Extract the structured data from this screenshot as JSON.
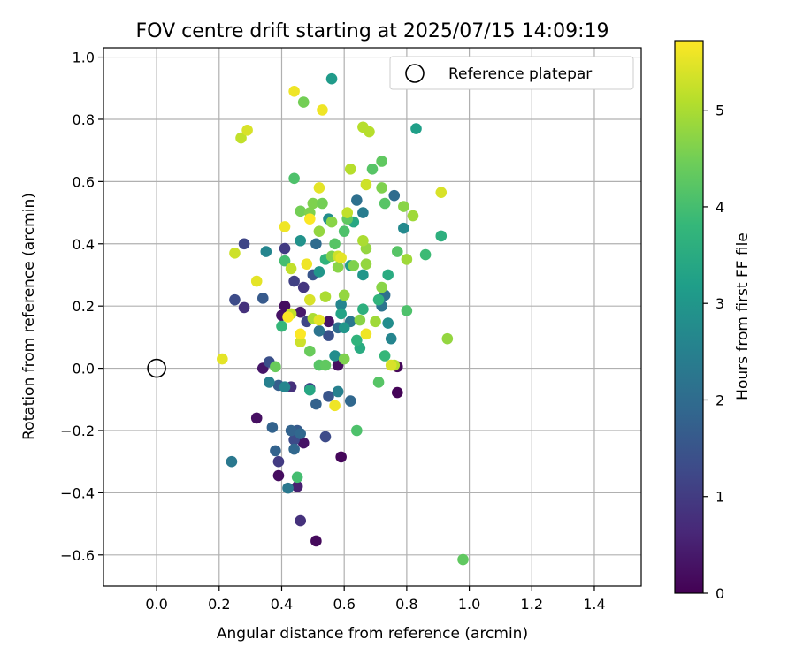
{
  "chart_data": {
    "type": "scatter",
    "title": "FOV centre drift starting at 2025/07/15 14:09:19",
    "xlabel": "Angular distance from reference (arcmin)",
    "ylabel": "Rotation from reference (arcmin)",
    "xlim": [
      -0.17,
      1.55
    ],
    "ylim": [
      -0.7,
      1.03
    ],
    "xticks": [
      0.0,
      0.2,
      0.4,
      0.6,
      0.8,
      1.0,
      1.2,
      1.4
    ],
    "yticks": [
      -0.6,
      -0.4,
      -0.2,
      0.0,
      0.2,
      0.4,
      0.6,
      0.8,
      1.0
    ],
    "xtick_labels": [
      "0.0",
      "0.2",
      "0.4",
      "0.6",
      "0.8",
      "1.0",
      "1.2",
      "1.4"
    ],
    "ytick_labels": [
      "−0.6",
      "−0.4",
      "−0.2",
      "0.0",
      "0.2",
      "0.4",
      "0.6",
      "0.8",
      "1.0"
    ],
    "grid": true,
    "legend": {
      "placement": "top-right",
      "label": "Reference platepar"
    },
    "reference_point": {
      "x": 0.0,
      "y": 0.0
    },
    "colorbar": {
      "label": "Hours from first FF file",
      "colormap": "viridis",
      "range": [
        0,
        5.72
      ],
      "ticks": [
        0,
        1,
        2,
        3,
        4,
        5
      ],
      "tick_labels": [
        "0",
        "1",
        "2",
        "3",
        "4",
        "5"
      ]
    },
    "points": [
      {
        "x": 0.77,
        "y": 0.005,
        "h": 0.1
      },
      {
        "x": 0.77,
        "y": -0.078,
        "h": 0.05
      },
      {
        "x": 0.59,
        "y": -0.285,
        "h": 0.1
      },
      {
        "x": 0.51,
        "y": -0.555,
        "h": 0.15
      },
      {
        "x": 0.39,
        "y": -0.345,
        "h": 0.2
      },
      {
        "x": 0.32,
        "y": -0.16,
        "h": 0.25
      },
      {
        "x": 0.4,
        "y": 0.17,
        "h": 0.3
      },
      {
        "x": 0.41,
        "y": 0.2,
        "h": 0.2
      },
      {
        "x": 0.47,
        "y": -0.24,
        "h": 0.3
      },
      {
        "x": 0.34,
        "y": 0.0,
        "h": 0.35
      },
      {
        "x": 0.45,
        "y": -0.38,
        "h": 0.5
      },
      {
        "x": 0.46,
        "y": 0.18,
        "h": 0.4
      },
      {
        "x": 0.58,
        "y": 0.01,
        "h": 0.2
      },
      {
        "x": 0.55,
        "y": 0.15,
        "h": 0.3
      },
      {
        "x": 0.46,
        "y": -0.49,
        "h": 0.8
      },
      {
        "x": 0.39,
        "y": -0.3,
        "h": 1.0
      },
      {
        "x": 0.43,
        "y": -0.06,
        "h": 0.8
      },
      {
        "x": 0.47,
        "y": 0.26,
        "h": 0.9
      },
      {
        "x": 0.44,
        "y": 0.28,
        "h": 1.1
      },
      {
        "x": 0.28,
        "y": 0.4,
        "h": 1.2
      },
      {
        "x": 0.28,
        "y": 0.195,
        "h": 0.8
      },
      {
        "x": 0.25,
        "y": 0.22,
        "h": 1.3
      },
      {
        "x": 0.36,
        "y": 0.02,
        "h": 1.4
      },
      {
        "x": 0.41,
        "y": 0.385,
        "h": 1.0
      },
      {
        "x": 0.48,
        "y": 0.15,
        "h": 1.2
      },
      {
        "x": 0.44,
        "y": -0.23,
        "h": 1.3
      },
      {
        "x": 0.54,
        "y": -0.22,
        "h": 1.3
      },
      {
        "x": 0.45,
        "y": -0.2,
        "h": 1.6
      },
      {
        "x": 0.49,
        "y": -0.065,
        "h": 1.2
      },
      {
        "x": 0.55,
        "y": -0.09,
        "h": 1.5
      },
      {
        "x": 0.55,
        "y": 0.105,
        "h": 1.4
      },
      {
        "x": 0.39,
        "y": -0.055,
        "h": 1.7
      },
      {
        "x": 0.37,
        "y": -0.19,
        "h": 1.8
      },
      {
        "x": 0.43,
        "y": -0.2,
        "h": 1.8
      },
      {
        "x": 0.46,
        "y": -0.21,
        "h": 1.9
      },
      {
        "x": 0.44,
        "y": -0.26,
        "h": 1.9
      },
      {
        "x": 0.38,
        "y": -0.265,
        "h": 1.8
      },
      {
        "x": 0.34,
        "y": 0.225,
        "h": 1.6
      },
      {
        "x": 0.5,
        "y": 0.3,
        "h": 1.5
      },
      {
        "x": 0.51,
        "y": -0.115,
        "h": 1.8
      },
      {
        "x": 0.62,
        "y": -0.105,
        "h": 1.9
      },
      {
        "x": 0.64,
        "y": 0.54,
        "h": 2.1
      },
      {
        "x": 0.51,
        "y": 0.4,
        "h": 2.0
      },
      {
        "x": 0.24,
        "y": -0.3,
        "h": 2.3
      },
      {
        "x": 0.42,
        "y": -0.385,
        "h": 2.3
      },
      {
        "x": 0.36,
        "y": -0.045,
        "h": 2.5
      },
      {
        "x": 0.41,
        "y": -0.06,
        "h": 2.6
      },
      {
        "x": 0.52,
        "y": 0.12,
        "h": 2.2
      },
      {
        "x": 0.58,
        "y": 0.13,
        "h": 2.0
      },
      {
        "x": 0.58,
        "y": -0.075,
        "h": 2.5
      },
      {
        "x": 0.59,
        "y": 0.205,
        "h": 2.6
      },
      {
        "x": 0.62,
        "y": 0.15,
        "h": 2.3
      },
      {
        "x": 0.66,
        "y": 0.5,
        "h": 2.4
      },
      {
        "x": 0.72,
        "y": 0.2,
        "h": 2.2
      },
      {
        "x": 0.73,
        "y": 0.235,
        "h": 2.1
      },
      {
        "x": 0.76,
        "y": 0.555,
        "h": 2.0
      },
      {
        "x": 0.79,
        "y": 0.45,
        "h": 2.7
      },
      {
        "x": 0.74,
        "y": 0.145,
        "h": 2.8
      },
      {
        "x": 0.75,
        "y": 0.095,
        "h": 2.6
      },
      {
        "x": 0.57,
        "y": 0.04,
        "h": 2.8
      },
      {
        "x": 0.35,
        "y": 0.375,
        "h": 2.6
      },
      {
        "x": 0.46,
        "y": 0.41,
        "h": 2.9
      },
      {
        "x": 0.52,
        "y": 0.31,
        "h": 3.0
      },
      {
        "x": 0.55,
        "y": 0.48,
        "h": 2.8
      },
      {
        "x": 0.56,
        "y": 0.93,
        "h": 3.1
      },
      {
        "x": 0.83,
        "y": 0.77,
        "h": 3.2
      },
      {
        "x": 0.62,
        "y": 0.33,
        "h": 3.1
      },
      {
        "x": 0.66,
        "y": 0.3,
        "h": 3.0
      },
      {
        "x": 0.59,
        "y": 0.175,
        "h": 3.3
      },
      {
        "x": 0.6,
        "y": 0.13,
        "h": 3.0
      },
      {
        "x": 0.63,
        "y": 0.47,
        "h": 3.4
      },
      {
        "x": 0.74,
        "y": 0.3,
        "h": 3.5
      },
      {
        "x": 0.91,
        "y": 0.425,
        "h": 3.6
      },
      {
        "x": 0.49,
        "y": -0.07,
        "h": 3.4
      },
      {
        "x": 0.65,
        "y": 0.065,
        "h": 3.5
      },
      {
        "x": 0.66,
        "y": 0.19,
        "h": 3.6
      },
      {
        "x": 0.71,
        "y": 0.22,
        "h": 3.7
      },
      {
        "x": 0.4,
        "y": 0.135,
        "h": 3.8
      },
      {
        "x": 0.54,
        "y": 0.35,
        "h": 3.7
      },
      {
        "x": 0.64,
        "y": 0.09,
        "h": 3.7
      },
      {
        "x": 0.73,
        "y": 0.04,
        "h": 3.8
      },
      {
        "x": 0.86,
        "y": 0.365,
        "h": 3.9
      },
      {
        "x": 0.45,
        "y": -0.35,
        "h": 4.0
      },
      {
        "x": 0.64,
        "y": -0.2,
        "h": 4.1
      },
      {
        "x": 0.41,
        "y": 0.345,
        "h": 4.0
      },
      {
        "x": 0.44,
        "y": 0.61,
        "h": 4.1
      },
      {
        "x": 0.57,
        "y": 0.4,
        "h": 4.2
      },
      {
        "x": 0.6,
        "y": 0.44,
        "h": 4.1
      },
      {
        "x": 0.61,
        "y": 0.48,
        "h": 4.3
      },
      {
        "x": 0.69,
        "y": 0.64,
        "h": 4.2
      },
      {
        "x": 0.72,
        "y": 0.665,
        "h": 4.3
      },
      {
        "x": 0.73,
        "y": 0.53,
        "h": 4.2
      },
      {
        "x": 0.77,
        "y": 0.375,
        "h": 4.2
      },
      {
        "x": 0.8,
        "y": 0.185,
        "h": 4.1
      },
      {
        "x": 0.71,
        "y": -0.045,
        "h": 4.2
      },
      {
        "x": 0.98,
        "y": -0.615,
        "h": 4.3
      },
      {
        "x": 0.52,
        "y": 0.01,
        "h": 4.2
      },
      {
        "x": 0.54,
        "y": 0.01,
        "h": 4.3
      },
      {
        "x": 0.49,
        "y": 0.055,
        "h": 4.4
      },
      {
        "x": 0.38,
        "y": 0.005,
        "h": 4.4
      },
      {
        "x": 0.47,
        "y": 0.855,
        "h": 4.5
      },
      {
        "x": 0.46,
        "y": 0.505,
        "h": 4.5
      },
      {
        "x": 0.49,
        "y": 0.5,
        "h": 4.6
      },
      {
        "x": 0.5,
        "y": 0.53,
        "h": 4.6
      },
      {
        "x": 0.53,
        "y": 0.53,
        "h": 4.5
      },
      {
        "x": 0.56,
        "y": 0.47,
        "h": 4.7
      },
      {
        "x": 0.56,
        "y": 0.36,
        "h": 4.6
      },
      {
        "x": 0.58,
        "y": 0.325,
        "h": 4.7
      },
      {
        "x": 0.6,
        "y": 0.235,
        "h": 4.8
      },
      {
        "x": 0.6,
        "y": 0.03,
        "h": 4.6
      },
      {
        "x": 0.63,
        "y": 0.33,
        "h": 4.6
      },
      {
        "x": 0.65,
        "y": 0.155,
        "h": 4.7
      },
      {
        "x": 0.67,
        "y": 0.385,
        "h": 4.8
      },
      {
        "x": 0.67,
        "y": 0.335,
        "h": 4.8
      },
      {
        "x": 0.7,
        "y": 0.15,
        "h": 4.9
      },
      {
        "x": 0.72,
        "y": 0.58,
        "h": 4.6
      },
      {
        "x": 0.72,
        "y": 0.26,
        "h": 4.7
      },
      {
        "x": 0.79,
        "y": 0.52,
        "h": 4.7
      },
      {
        "x": 0.8,
        "y": 0.35,
        "h": 4.9
      },
      {
        "x": 0.82,
        "y": 0.49,
        "h": 4.9
      },
      {
        "x": 0.93,
        "y": 0.095,
        "h": 4.8
      },
      {
        "x": 0.52,
        "y": 0.44,
        "h": 4.8
      },
      {
        "x": 0.66,
        "y": 0.41,
        "h": 5.0
      },
      {
        "x": 0.66,
        "y": 0.775,
        "h": 5.1
      },
      {
        "x": 0.68,
        "y": 0.76,
        "h": 5.1
      },
      {
        "x": 0.62,
        "y": 0.64,
        "h": 5.1
      },
      {
        "x": 0.61,
        "y": 0.5,
        "h": 5.2
      },
      {
        "x": 0.54,
        "y": 0.23,
        "h": 5.0
      },
      {
        "x": 0.58,
        "y": 0.36,
        "h": 5.3
      },
      {
        "x": 0.43,
        "y": 0.175,
        "h": 5.2
      },
      {
        "x": 0.43,
        "y": 0.32,
        "h": 5.2
      },
      {
        "x": 0.49,
        "y": 0.22,
        "h": 5.4
      },
      {
        "x": 0.46,
        "y": 0.085,
        "h": 5.3
      },
      {
        "x": 0.5,
        "y": 0.16,
        "h": 5.0
      },
      {
        "x": 0.25,
        "y": 0.37,
        "h": 5.3
      },
      {
        "x": 0.27,
        "y": 0.74,
        "h": 5.2
      },
      {
        "x": 0.29,
        "y": 0.765,
        "h": 5.4
      },
      {
        "x": 0.67,
        "y": 0.59,
        "h": 5.3
      },
      {
        "x": 0.76,
        "y": 0.01,
        "h": 5.1
      },
      {
        "x": 0.91,
        "y": 0.565,
        "h": 5.4
      },
      {
        "x": 0.59,
        "y": 0.355,
        "h": 5.5
      },
      {
        "x": 0.44,
        "y": 0.89,
        "h": 5.6
      },
      {
        "x": 0.53,
        "y": 0.83,
        "h": 5.6
      },
      {
        "x": 0.52,
        "y": 0.58,
        "h": 5.5
      },
      {
        "x": 0.49,
        "y": 0.48,
        "h": 5.7
      },
      {
        "x": 0.41,
        "y": 0.455,
        "h": 5.6
      },
      {
        "x": 0.48,
        "y": 0.335,
        "h": 5.6
      },
      {
        "x": 0.32,
        "y": 0.28,
        "h": 5.5
      },
      {
        "x": 0.21,
        "y": 0.03,
        "h": 5.5
      },
      {
        "x": 0.42,
        "y": 0.165,
        "h": 5.7
      },
      {
        "x": 0.46,
        "y": 0.11,
        "h": 5.7
      },
      {
        "x": 0.52,
        "y": 0.155,
        "h": 5.5
      },
      {
        "x": 0.57,
        "y": -0.12,
        "h": 5.6
      },
      {
        "x": 0.67,
        "y": 0.11,
        "h": 5.6
      },
      {
        "x": 0.75,
        "y": 0.01,
        "h": 5.4
      }
    ]
  }
}
